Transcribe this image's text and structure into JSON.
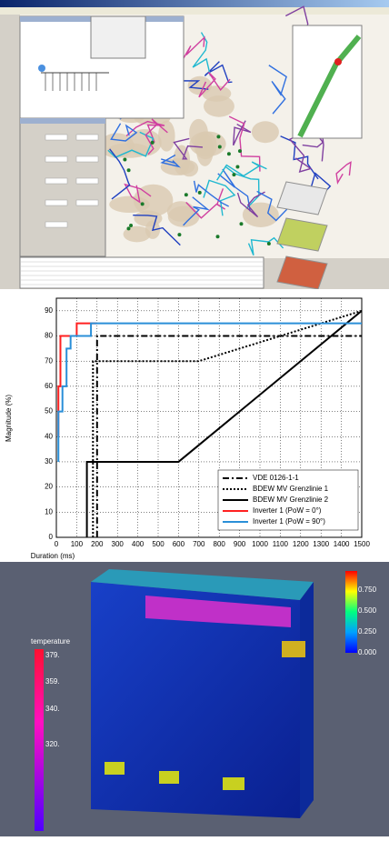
{
  "chart_data": {
    "type": "line",
    "xlabel": "Duration (ms)",
    "ylabel": "Magnitude (%)",
    "xlim": [
      0,
      1500
    ],
    "xticks": [
      0,
      100,
      200,
      300,
      400,
      500,
      600,
      700,
      800,
      900,
      1000,
      1100,
      1200,
      1300,
      1400,
      1500
    ],
    "ylim": [
      0,
      95
    ],
    "yticks": [
      0,
      10,
      20,
      30,
      40,
      50,
      60,
      70,
      80,
      90
    ],
    "grid": true,
    "legend": "lower right",
    "series": [
      {
        "name": "VDE 0126-1-1",
        "color": "#000000",
        "style": "dashdot",
        "x": [
          200,
          200,
          1500
        ],
        "values": [
          0,
          80,
          80
        ]
      },
      {
        "name": "BDEW MV Grenzlinie 1",
        "color": "#000000",
        "style": "dotted",
        "x": [
          180,
          180,
          700,
          1500
        ],
        "values": [
          0,
          70,
          70,
          90
        ]
      },
      {
        "name": "BDEW MV Grenzlinie 2",
        "color": "#000000",
        "style": "solid",
        "x": [
          150,
          150,
          600,
          1500
        ],
        "values": [
          0,
          30,
          30,
          90
        ]
      },
      {
        "name": "Inverter 1 (PoW = 0°)",
        "color": "#ff2020",
        "style": "solid",
        "x": [
          10,
          10,
          20,
          20,
          100,
          100,
          200
        ],
        "values": [
          40,
          60,
          60,
          80,
          80,
          85,
          85
        ]
      },
      {
        "name": "Inverter 1 (PoW = 90°)",
        "color": "#2a8fd8",
        "style": "solid",
        "x": [
          10,
          10,
          30,
          30,
          50,
          50,
          70,
          70,
          170,
          170,
          1500
        ],
        "values": [
          30,
          50,
          50,
          60,
          60,
          75,
          75,
          80,
          80,
          85,
          85
        ]
      }
    ]
  },
  "render": {
    "legend_title": "temperature",
    "left_scale_labels": [
      "379.",
      "359.",
      "340.",
      "320."
    ],
    "right_scale_labels": [
      "0.750",
      "0.500",
      "0.250",
      "0.000"
    ]
  }
}
